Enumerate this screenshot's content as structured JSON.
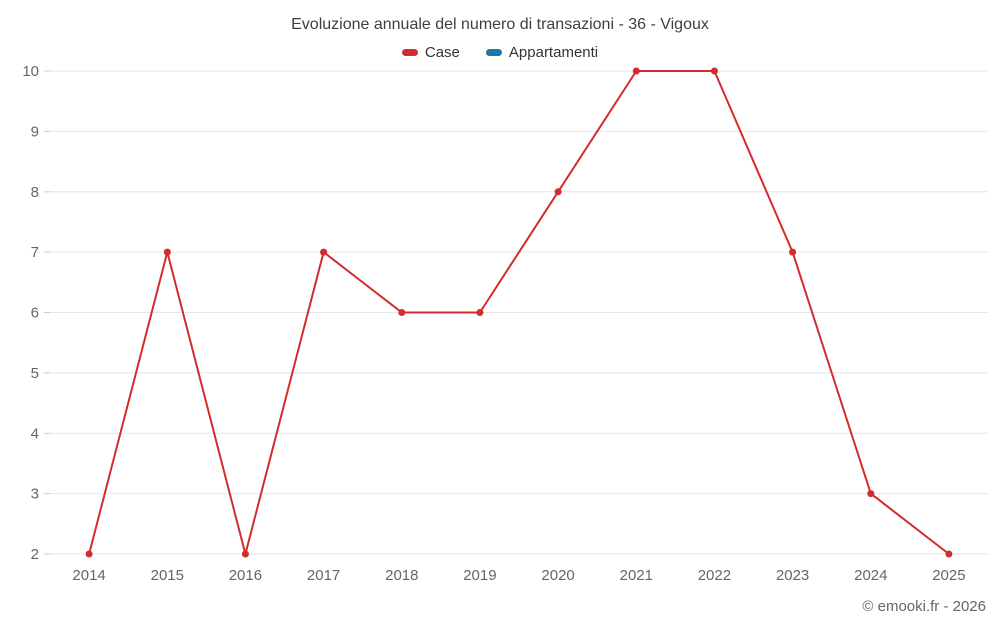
{
  "header": {
    "title": "Evoluzione annuale del numero di transazioni - 36 - Vigoux"
  },
  "legend": [
    {
      "label": "Case",
      "color": "#d22c2c"
    },
    {
      "label": "Appartamenti",
      "color": "#1878a8"
    }
  ],
  "footer": {
    "copyright": "© emooki.fr - 2026"
  },
  "chart_data": {
    "type": "line",
    "title": "Evoluzione annuale del numero di transazioni - 36 - Vigoux",
    "x": [
      "2014",
      "2015",
      "2016",
      "2017",
      "2018",
      "2019",
      "2020",
      "2021",
      "2022",
      "2023",
      "2024",
      "2025"
    ],
    "series": [
      {
        "name": "Case",
        "color": "#d22c2c",
        "values": [
          2,
          7,
          2,
          7,
          6,
          6,
          8,
          10,
          10,
          7,
          3,
          2
        ]
      },
      {
        "name": "Appartamenti",
        "color": "#1878a8",
        "values": []
      }
    ],
    "xlabel": "",
    "ylabel": "",
    "ylim": [
      2,
      10
    ],
    "yticks": [
      2,
      3,
      4,
      5,
      6,
      7,
      8,
      9,
      10
    ],
    "grid": true,
    "grid_color": "#e6e6e6",
    "legend_position": "top",
    "marker": "circle"
  }
}
